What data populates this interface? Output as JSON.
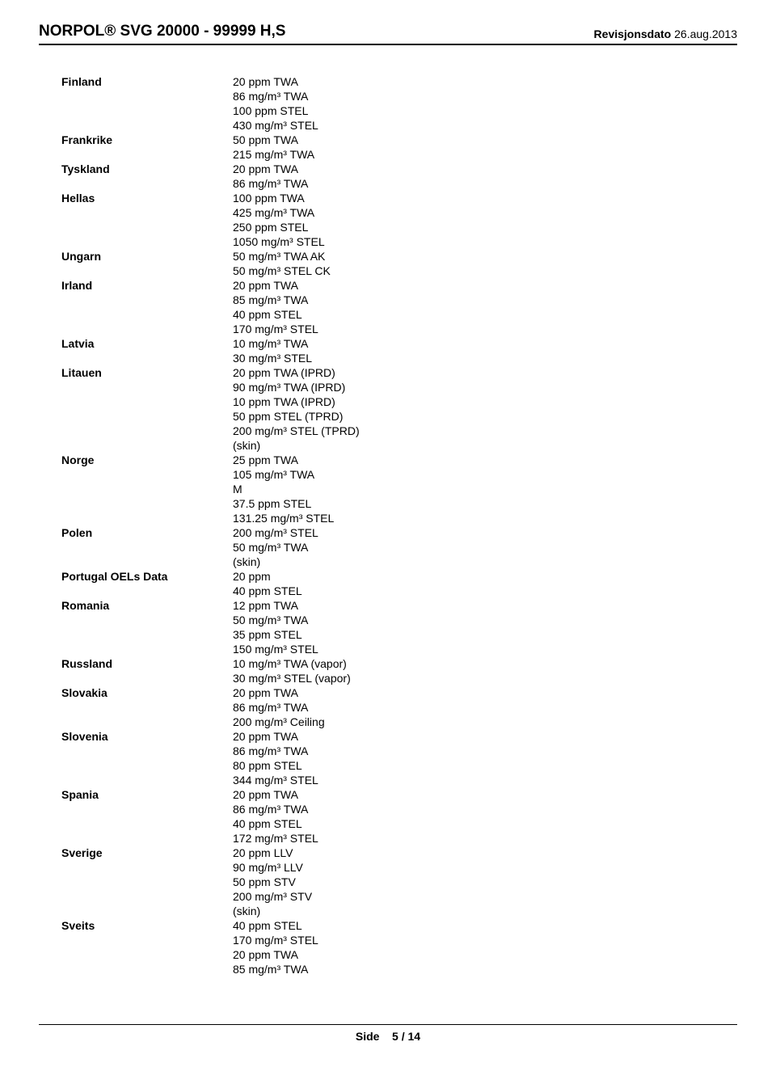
{
  "header": {
    "title": "NORPOL® SVG 20000 - 99999 H,S",
    "revision_label": "Revisjonsdato",
    "revision_date": "26.aug.2013"
  },
  "rows": [
    {
      "country": "Finland",
      "values": [
        "20 ppm TWA",
        "86 mg/m³ TWA",
        "100 ppm STEL",
        "430 mg/m³ STEL"
      ]
    },
    {
      "country": "Frankrike",
      "values": [
        "50 ppm TWA",
        "215 mg/m³ TWA"
      ]
    },
    {
      "country": "Tyskland",
      "values": [
        "20 ppm TWA",
        "86 mg/m³ TWA"
      ]
    },
    {
      "country": "Hellas",
      "values": [
        "100 ppm TWA",
        "425 mg/m³ TWA",
        "250 ppm STEL",
        "1050 mg/m³ STEL"
      ]
    },
    {
      "country": "Ungarn",
      "values": [
        "50 mg/m³ TWA AK",
        "50 mg/m³ STEL CK"
      ]
    },
    {
      "country": "Irland",
      "values": [
        "20 ppm TWA",
        "85 mg/m³ TWA",
        "40 ppm STEL",
        "170 mg/m³ STEL"
      ]
    },
    {
      "country": "Latvia",
      "values": [
        "10 mg/m³ TWA",
        "30 mg/m³ STEL"
      ]
    },
    {
      "country": "Litauen",
      "values": [
        "20 ppm TWA (IPRD)",
        "90 mg/m³ TWA (IPRD)",
        "10 ppm TWA (IPRD)",
        "50 ppm STEL (TPRD)",
        "200 mg/m³ STEL (TPRD)",
        "(skin)"
      ]
    },
    {
      "country": "Norge",
      "values": [
        "25 ppm TWA",
        "105 mg/m³ TWA",
        "M",
        "37.5 ppm STEL",
        "131.25 mg/m³ STEL"
      ]
    },
    {
      "country": "Polen",
      "values": [
        "200 mg/m³ STEL",
        "50 mg/m³ TWA",
        "(skin)"
      ]
    },
    {
      "country": "Portugal OELs Data",
      "values": [
        "20 ppm",
        "40 ppm STEL"
      ]
    },
    {
      "country": "Romania",
      "values": [
        "12 ppm TWA",
        "50 mg/m³ TWA",
        "35 ppm STEL",
        "150 mg/m³ STEL"
      ]
    },
    {
      "country": "Russland",
      "values": [
        "10 mg/m³ TWA (vapor)",
        "30 mg/m³ STEL (vapor)"
      ]
    },
    {
      "country": "Slovakia",
      "values": [
        "20 ppm TWA",
        "86 mg/m³ TWA",
        "200 mg/m³ Ceiling"
      ]
    },
    {
      "country": "Slovenia",
      "values": [
        "20 ppm TWA",
        "86 mg/m³ TWA",
        "80 ppm STEL",
        "344 mg/m³ STEL"
      ]
    },
    {
      "country": "Spania",
      "values": [
        "20 ppm TWA",
        "86 mg/m³ TWA",
        "40 ppm STEL",
        "172 mg/m³ STEL"
      ]
    },
    {
      "country": "Sverige",
      "values": [
        "20 ppm LLV",
        "90 mg/m³ LLV",
        "50 ppm STV",
        "200 mg/m³ STV",
        "(skin)"
      ]
    },
    {
      "country": "Sveits",
      "values": [
        "40 ppm STEL",
        "170 mg/m³ STEL",
        "20 ppm TWA",
        "85 mg/m³ TWA"
      ]
    }
  ],
  "footer": {
    "page_label": "Side",
    "page_current": "5",
    "page_sep": "/",
    "page_total": "14"
  }
}
